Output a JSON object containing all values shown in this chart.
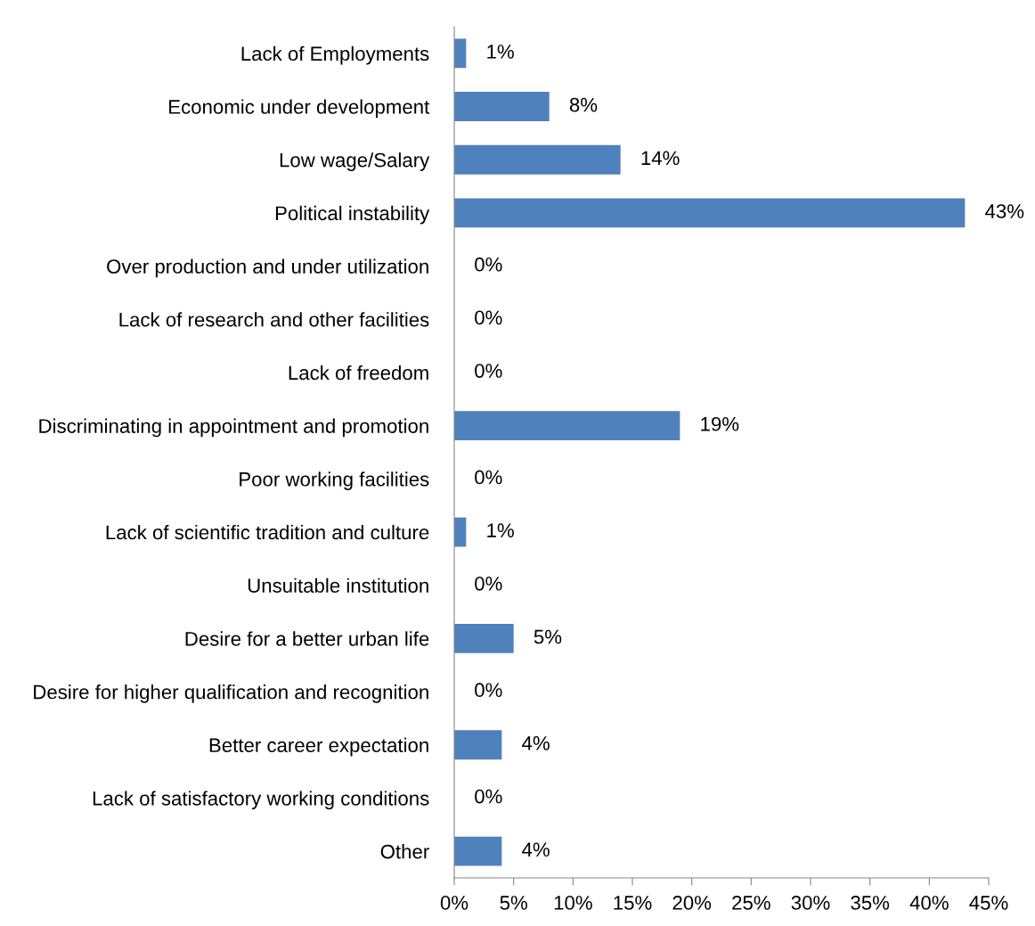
{
  "chart_data": {
    "type": "bar",
    "orientation": "horizontal",
    "categories": [
      "Lack of Employments",
      "Economic under development",
      "Low wage/Salary",
      "Political instability",
      "Over production and under utilization",
      "Lack of research and other facilities",
      "Lack of freedom",
      "Discriminating in appointment and promotion",
      "Poor working facilities",
      "Lack of scientific tradition and culture",
      "Unsuitable institution",
      "Desire for a better urban life",
      "Desire for higher qualification and recognition",
      "Better career expectation",
      "Lack of satisfactory working conditions",
      "Other"
    ],
    "values": [
      1,
      8,
      14,
      43,
      0,
      0,
      0,
      19,
      0,
      1,
      0,
      5,
      0,
      4,
      0,
      4
    ],
    "value_labels": [
      "1%",
      "8%",
      "14%",
      "43%",
      "0%",
      "0%",
      "0%",
      "19%",
      "0%",
      "1%",
      "0%",
      "5%",
      "0%",
      "4%",
      "0%",
      "4%"
    ],
    "color": "#4f81bd",
    "xlim": [
      0,
      45
    ],
    "xticks": [
      {
        "value": 0,
        "label": "0%"
      },
      {
        "value": 5,
        "label": "5%"
      },
      {
        "value": 10,
        "label": "10%"
      },
      {
        "value": 15,
        "label": "15%"
      },
      {
        "value": 20,
        "label": "20%"
      },
      {
        "value": 25,
        "label": "25%"
      },
      {
        "value": 30,
        "label": "30%"
      },
      {
        "value": 35,
        "label": "35%"
      },
      {
        "value": 40,
        "label": "40%"
      },
      {
        "value": 45,
        "label": "45%"
      }
    ],
    "grid": false,
    "legend": false
  }
}
